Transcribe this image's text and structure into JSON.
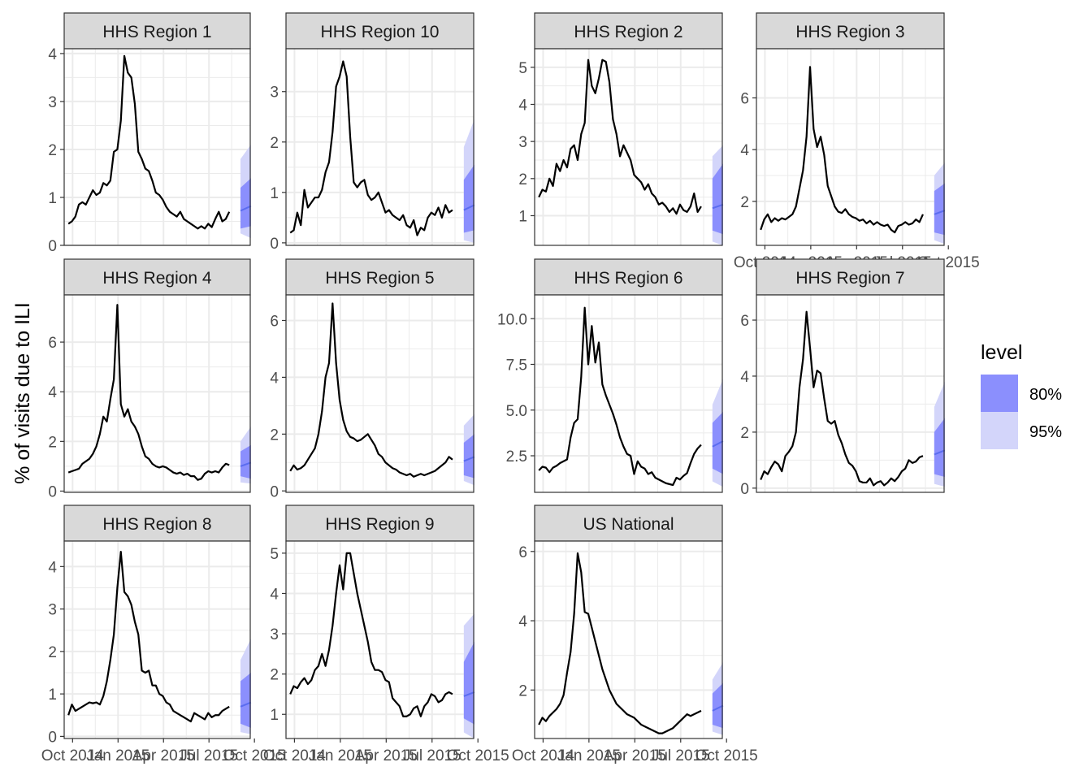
{
  "chart_data": {
    "type": "line",
    "ylabel": "% of visits due to ILI",
    "xlabel": "",
    "x_tick_labels": [
      "Oct 2014",
      "Jan 2015",
      "Apr 2015",
      "Jul 2015",
      "Oct 2015"
    ],
    "legend": {
      "title": "level",
      "position": "right",
      "items": [
        {
          "label": "80%",
          "color": "#8b8ffd"
        },
        {
          "label": "95%",
          "color": "#d3d5fa"
        }
      ]
    },
    "colors": {
      "observed_line": "#000000",
      "forecast_line": "#5a6cf0",
      "band_80": "#8b8ffd",
      "band_95": "#d3d5fa",
      "strip_fill": "#d9d9d9",
      "grid": "#ebebeb"
    },
    "panels": [
      {
        "name": "HHS Region 1",
        "ylim": [
          0,
          4.1
        ],
        "yticks": [
          0,
          1,
          2,
          3,
          4
        ],
        "observed": [
          0.45,
          0.5,
          0.6,
          0.85,
          0.9,
          0.85,
          1.0,
          1.15,
          1.05,
          1.1,
          1.3,
          1.25,
          1.35,
          1.95,
          2.0,
          2.6,
          3.95,
          3.6,
          3.5,
          2.95,
          1.95,
          1.8,
          1.6,
          1.55,
          1.35,
          1.1,
          1.05,
          0.95,
          0.8,
          0.7,
          0.65,
          0.6,
          0.7,
          0.55,
          0.5,
          0.45,
          0.4,
          0.35,
          0.4,
          0.35,
          0.45,
          0.38,
          0.55,
          0.7,
          0.5,
          0.55,
          0.7
        ],
        "forecast": {
          "mean": [
            0.72,
            0.82
          ],
          "lo80": [
            0.35,
            0.4
          ],
          "hi80": [
            1.2,
            1.4
          ],
          "lo95": [
            0.25,
            0.15
          ],
          "hi95": [
            1.8,
            2.1
          ]
        }
      },
      {
        "name": "HHS Region 10",
        "ylim": [
          -0.05,
          3.85
        ],
        "yticks": [
          0,
          1,
          2,
          3
        ],
        "observed": [
          0.2,
          0.25,
          0.6,
          0.35,
          1.05,
          0.7,
          0.8,
          0.9,
          0.9,
          1.05,
          1.4,
          1.6,
          2.2,
          3.1,
          3.3,
          3.6,
          3.3,
          2.1,
          1.2,
          1.1,
          1.2,
          1.25,
          0.95,
          0.85,
          0.9,
          1.0,
          0.8,
          0.6,
          0.65,
          0.55,
          0.5,
          0.45,
          0.55,
          0.35,
          0.3,
          0.45,
          0.15,
          0.3,
          0.25,
          0.5,
          0.6,
          0.55,
          0.7,
          0.5,
          0.75,
          0.6,
          0.65
        ],
        "forecast": {
          "mean": [
            0.65,
            0.75
          ],
          "lo80": [
            0.2,
            0.25
          ],
          "hi80": [
            1.25,
            1.55
          ],
          "lo95": [
            0.05,
            0.0
          ],
          "hi95": [
            1.9,
            2.45
          ]
        }
      },
      {
        "name": "HHS Region 2",
        "ylim": [
          0.2,
          5.5
        ],
        "yticks": [
          1,
          2,
          3,
          4,
          5
        ],
        "observed": [
          1.5,
          1.7,
          1.65,
          2.0,
          1.8,
          2.4,
          2.2,
          2.5,
          2.3,
          2.8,
          2.9,
          2.5,
          3.2,
          3.5,
          5.2,
          4.5,
          4.3,
          4.7,
          5.2,
          5.15,
          4.6,
          3.6,
          3.2,
          2.6,
          2.9,
          2.7,
          2.5,
          2.1,
          2.0,
          1.9,
          1.7,
          1.85,
          1.6,
          1.5,
          1.3,
          1.35,
          1.25,
          1.1,
          1.2,
          1.05,
          1.3,
          1.15,
          1.1,
          1.25,
          1.6,
          1.1,
          1.25
        ],
        "forecast": {
          "mean": [
            1.2,
            1.3
          ],
          "lo80": [
            0.6,
            0.5
          ],
          "hi80": [
            2.0,
            2.4
          ],
          "lo95": [
            0.3,
            0.2
          ],
          "hi95": [
            2.6,
            2.9
          ]
        }
      },
      {
        "name": "HHS Region 3",
        "ylim": [
          0.3,
          7.9
        ],
        "yticks": [
          2,
          4,
          6
        ],
        "observed": [
          0.9,
          1.3,
          1.5,
          1.2,
          1.35,
          1.25,
          1.35,
          1.3,
          1.4,
          1.5,
          1.8,
          2.5,
          3.2,
          4.5,
          7.2,
          4.8,
          4.1,
          4.5,
          3.8,
          2.6,
          2.2,
          1.8,
          1.6,
          1.55,
          1.7,
          1.5,
          1.4,
          1.35,
          1.25,
          1.3,
          1.15,
          1.25,
          1.1,
          1.2,
          1.1,
          1.05,
          1.1,
          0.9,
          0.8,
          1.05,
          1.1,
          1.2,
          1.1,
          1.15,
          1.3,
          1.2,
          1.5
        ],
        "forecast": {
          "mean": [
            1.5,
            1.65
          ],
          "lo80": [
            0.8,
            0.7
          ],
          "hi80": [
            2.4,
            2.7
          ],
          "lo95": [
            0.5,
            0.35
          ],
          "hi95": [
            3.0,
            3.5
          ]
        }
      },
      {
        "name": "HHS Region 4",
        "ylim": [
          -0.05,
          7.9
        ],
        "yticks": [
          0,
          2,
          4,
          6
        ],
        "observed": [
          0.75,
          0.8,
          0.85,
          0.9,
          1.1,
          1.2,
          1.3,
          1.5,
          1.8,
          2.3,
          3.0,
          2.8,
          3.7,
          4.5,
          7.5,
          3.5,
          3.0,
          3.3,
          2.8,
          2.6,
          2.3,
          1.8,
          1.4,
          1.3,
          1.1,
          1.0,
          0.95,
          1.0,
          0.95,
          0.85,
          0.75,
          0.7,
          0.75,
          0.65,
          0.7,
          0.6,
          0.6,
          0.45,
          0.5,
          0.7,
          0.8,
          0.75,
          0.8,
          0.75,
          0.95,
          1.1,
          1.05
        ],
        "forecast": {
          "mean": [
            1.0,
            1.15
          ],
          "lo80": [
            0.6,
            0.5
          ],
          "hi80": [
            1.6,
            1.85
          ],
          "lo95": [
            0.35,
            0.3
          ],
          "hi95": [
            2.0,
            2.6
          ]
        }
      },
      {
        "name": "HHS Region 5",
        "ylim": [
          -0.05,
          6.9
        ],
        "yticks": [
          0,
          2,
          4,
          6
        ],
        "observed": [
          0.7,
          0.9,
          0.75,
          0.8,
          0.9,
          1.1,
          1.3,
          1.5,
          2.0,
          2.8,
          4.0,
          4.5,
          6.6,
          4.5,
          3.2,
          2.5,
          2.1,
          1.9,
          1.85,
          1.75,
          1.8,
          1.9,
          2.0,
          1.8,
          1.6,
          1.3,
          1.2,
          1.0,
          0.9,
          0.8,
          0.75,
          0.65,
          0.6,
          0.55,
          0.6,
          0.5,
          0.55,
          0.6,
          0.55,
          0.6,
          0.65,
          0.7,
          0.8,
          0.9,
          1.0,
          1.2,
          1.1
        ],
        "forecast": {
          "mean": [
            1.05,
            1.2
          ],
          "lo80": [
            0.55,
            0.45
          ],
          "hi80": [
            1.7,
            2.0
          ],
          "lo95": [
            0.35,
            0.2
          ],
          "hi95": [
            2.3,
            2.7
          ]
        }
      },
      {
        "name": "HHS Region 6",
        "ylim": [
          0.5,
          11.3
        ],
        "yticks": [
          2.5,
          5.0,
          7.5,
          10.0
        ],
        "observed": [
          1.7,
          1.9,
          1.85,
          1.6,
          1.85,
          1.95,
          2.1,
          2.2,
          2.3,
          3.5,
          4.3,
          4.5,
          6.8,
          10.6,
          7.5,
          9.6,
          7.6,
          8.7,
          6.4,
          5.8,
          5.3,
          4.8,
          4.2,
          3.5,
          3.0,
          2.6,
          2.5,
          1.5,
          2.2,
          1.9,
          1.8,
          1.5,
          1.6,
          1.3,
          1.2,
          1.1,
          1.0,
          0.95,
          0.9,
          1.3,
          1.2,
          1.4,
          1.55,
          2.1,
          2.6,
          2.9,
          3.1
        ],
        "forecast": {
          "mean": [
            3.0,
            3.3
          ],
          "lo80": [
            1.8,
            1.5
          ],
          "hi80": [
            4.3,
            4.9
          ],
          "lo95": [
            1.1,
            0.8
          ],
          "hi95": [
            5.3,
            6.7
          ]
        }
      },
      {
        "name": "HHS Region 7",
        "ylim": [
          -0.15,
          6.9
        ],
        "yticks": [
          0,
          2,
          4,
          6
        ],
        "observed": [
          0.3,
          0.6,
          0.5,
          0.75,
          0.95,
          0.85,
          0.6,
          1.15,
          1.3,
          1.5,
          2.0,
          3.6,
          4.6,
          6.3,
          5.0,
          3.6,
          4.2,
          4.1,
          3.2,
          2.4,
          2.3,
          2.4,
          1.9,
          1.6,
          1.2,
          0.9,
          0.8,
          0.6,
          0.25,
          0.2,
          0.2,
          0.35,
          0.1,
          0.2,
          0.25,
          0.1,
          0.2,
          0.35,
          0.25,
          0.4,
          0.6,
          0.7,
          1.0,
          0.9,
          0.95,
          1.1,
          1.15
        ],
        "forecast": {
          "mean": [
            1.2,
            1.35
          ],
          "lo80": [
            0.5,
            0.4
          ],
          "hi80": [
            2.0,
            2.5
          ],
          "lo95": [
            0.15,
            0.05
          ],
          "hi95": [
            2.9,
            3.8
          ]
        }
      },
      {
        "name": "HHS Region 8",
        "ylim": [
          -0.05,
          4.6
        ],
        "yticks": [
          0,
          1,
          2,
          3,
          4
        ],
        "observed": [
          0.5,
          0.75,
          0.6,
          0.65,
          0.7,
          0.75,
          0.8,
          0.78,
          0.8,
          0.75,
          0.95,
          1.3,
          1.8,
          2.4,
          3.5,
          4.35,
          3.4,
          3.3,
          3.1,
          2.7,
          2.4,
          1.55,
          1.5,
          1.55,
          1.2,
          1.2,
          1.0,
          0.95,
          0.8,
          0.75,
          0.6,
          0.55,
          0.5,
          0.45,
          0.4,
          0.35,
          0.55,
          0.5,
          0.45,
          0.4,
          0.55,
          0.45,
          0.5,
          0.5,
          0.6,
          0.65,
          0.7
        ],
        "forecast": {
          "mean": [
            0.7,
            0.8
          ],
          "lo80": [
            0.3,
            0.2
          ],
          "hi80": [
            1.3,
            1.5
          ],
          "lo95": [
            0.1,
            0.05
          ],
          "hi95": [
            1.8,
            2.3
          ]
        }
      },
      {
        "name": "HHS Region 9",
        "ylim": [
          0.4,
          5.3
        ],
        "yticks": [
          1,
          2,
          3,
          4,
          5
        ],
        "observed": [
          1.5,
          1.7,
          1.65,
          1.8,
          1.9,
          1.75,
          1.85,
          2.1,
          2.2,
          2.5,
          2.2,
          2.6,
          3.2,
          4.0,
          4.7,
          4.1,
          5.0,
          5.0,
          4.5,
          4.0,
          3.6,
          3.2,
          2.8,
          2.3,
          2.1,
          2.1,
          2.05,
          1.85,
          1.8,
          1.4,
          1.3,
          1.2,
          0.95,
          0.95,
          1.0,
          1.15,
          1.2,
          0.95,
          1.2,
          1.3,
          1.5,
          1.45,
          1.3,
          1.35,
          1.5,
          1.55,
          1.5
        ],
        "forecast": {
          "mean": [
            1.45,
            1.55
          ],
          "lo80": [
            0.9,
            0.75
          ],
          "hi80": [
            2.3,
            2.8
          ],
          "lo95": [
            0.55,
            0.4
          ],
          "hi95": [
            3.2,
            3.5
          ]
        }
      },
      {
        "name": "US National",
        "ylim": [
          0.6,
          6.3
        ],
        "yticks": [
          2,
          4,
          6
        ],
        "observed": [
          1.0,
          1.2,
          1.1,
          1.25,
          1.35,
          1.45,
          1.6,
          1.85,
          2.5,
          3.1,
          4.2,
          5.95,
          5.4,
          4.25,
          4.2,
          3.8,
          3.4,
          3.0,
          2.6,
          2.3,
          2.0,
          1.8,
          1.6,
          1.5,
          1.4,
          1.3,
          1.25,
          1.2,
          1.1,
          1.0,
          0.95,
          0.9,
          0.85,
          0.8,
          0.75,
          0.75,
          0.8,
          0.85,
          0.9,
          1.0,
          1.1,
          1.2,
          1.3,
          1.25,
          1.3,
          1.35,
          1.4
        ],
        "forecast": {
          "mean": [
            1.4,
            1.55
          ],
          "lo80": [
            1.0,
            0.9
          ],
          "hi80": [
            1.9,
            2.2
          ],
          "lo95": [
            0.8,
            0.7
          ],
          "hi95": [
            2.3,
            2.8
          ]
        }
      }
    ]
  }
}
